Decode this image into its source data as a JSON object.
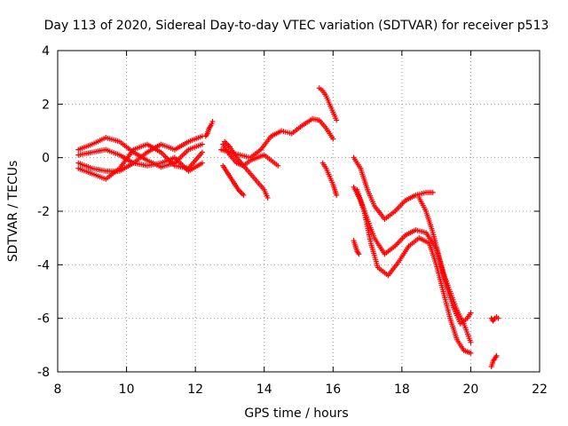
{
  "chart_data": {
    "type": "scatter",
    "title": "Day 113 of 2020, Sidereal Day-to-day VTEC variation (SDTVAR) for receiver p513",
    "xlabel": "GPS time / hours",
    "ylabel": "SDTVAR / TECUs",
    "xlim": [
      8,
      22
    ],
    "ylim": [
      -8,
      4
    ],
    "xticks": [
      "8",
      "10",
      "12",
      "14",
      "16",
      "18",
      "20",
      "22"
    ],
    "yticks": [
      "-8",
      "-6",
      "-4",
      "-2",
      "0",
      "2",
      "4"
    ],
    "grid": true,
    "marker": "+",
    "color": "#ff0000",
    "series": [
      {
        "name": "s1",
        "x": [
          8.6,
          9.0,
          9.4,
          9.8,
          10.2,
          10.6,
          11.0,
          11.4,
          11.8,
          12.2
        ],
        "y": [
          0.3,
          0.5,
          0.75,
          0.6,
          0.2,
          -0.1,
          -0.35,
          -0.2,
          0.3,
          0.5
        ]
      },
      {
        "name": "s2",
        "x": [
          8.6,
          9.0,
          9.4,
          9.8,
          10.2,
          10.6,
          11.0,
          11.4,
          11.8,
          12.2
        ],
        "y": [
          -0.4,
          -0.6,
          -0.8,
          -0.4,
          0.3,
          0.5,
          0.2,
          -0.3,
          -0.4,
          0.2
        ]
      },
      {
        "name": "s3",
        "x": [
          8.6,
          9.0,
          9.4,
          9.8,
          10.2,
          10.6,
          11.0,
          11.4,
          11.8,
          12.2
        ],
        "y": [
          0.1,
          0.2,
          0.3,
          0.1,
          -0.2,
          0.2,
          0.5,
          0.3,
          0.6,
          0.8
        ]
      },
      {
        "name": "s4",
        "x": [
          8.6,
          9.0,
          9.4,
          9.8,
          10.2,
          10.6,
          11.0,
          11.4,
          11.8,
          12.2
        ],
        "y": [
          -0.2,
          -0.4,
          -0.5,
          -0.5,
          -0.2,
          -0.3,
          -0.2,
          0.0,
          -0.5,
          -0.2
        ]
      },
      {
        "name": "s5",
        "x": [
          12.3,
          12.35,
          12.4,
          12.45,
          12.5
        ],
        "y": [
          0.8,
          0.9,
          1.1,
          1.2,
          1.35
        ]
      },
      {
        "name": "s6",
        "x": [
          12.75,
          13.0,
          13.3,
          13.6,
          13.9,
          14.2,
          14.5,
          14.8,
          15.1,
          15.4,
          15.6,
          15.8,
          16.0
        ],
        "y": [
          0.3,
          0.2,
          0.1,
          0.0,
          0.3,
          0.8,
          1.0,
          0.9,
          1.2,
          1.45,
          1.4,
          1.1,
          0.7
        ]
      },
      {
        "name": "s7",
        "x": [
          12.8,
          13.0,
          13.2,
          13.4,
          13.6,
          13.8,
          14.0,
          14.2,
          14.4
        ],
        "y": [
          0.5,
          0.1,
          -0.2,
          -0.3,
          -0.1,
          0.0,
          0.1,
          -0.1,
          -0.3
        ]
      },
      {
        "name": "s8",
        "x": [
          12.85,
          13.0,
          13.2,
          13.4,
          13.6,
          13.8,
          14.0,
          14.1
        ],
        "y": [
          0.6,
          0.4,
          0.0,
          -0.3,
          -0.6,
          -0.9,
          -1.2,
          -1.5
        ]
      },
      {
        "name": "s9",
        "x": [
          12.8,
          12.95,
          13.1,
          13.25,
          13.4
        ],
        "y": [
          -0.3,
          -0.6,
          -0.9,
          -1.2,
          -1.4
        ]
      },
      {
        "name": "s10",
        "x": [
          15.6,
          15.7,
          15.8,
          15.9,
          16.0,
          16.1
        ],
        "y": [
          2.6,
          2.5,
          2.3,
          2.0,
          1.7,
          1.4
        ]
      },
      {
        "name": "s11",
        "x": [
          15.7,
          15.8,
          15.9,
          16.0,
          16.1
        ],
        "y": [
          -0.2,
          -0.4,
          -0.7,
          -1.0,
          -1.4
        ]
      },
      {
        "name": "s12",
        "x": [
          16.6,
          16.8,
          17.0,
          17.2,
          17.5,
          17.8,
          18.1,
          18.4,
          18.7,
          18.9
        ],
        "y": [
          0.0,
          -0.4,
          -1.2,
          -1.8,
          -2.3,
          -2.0,
          -1.6,
          -1.4,
          -1.3,
          -1.3
        ]
      },
      {
        "name": "s13",
        "x": [
          16.6,
          16.8,
          17.0,
          17.2,
          17.5,
          17.8,
          18.1,
          18.4,
          18.7,
          19.0,
          19.2,
          19.4,
          19.6,
          19.8,
          20.0
        ],
        "y": [
          -1.1,
          -1.6,
          -2.3,
          -3.0,
          -3.6,
          -3.3,
          -2.9,
          -2.7,
          -2.8,
          -3.4,
          -4.3,
          -5.0,
          -5.7,
          -6.2,
          -6.9
        ]
      },
      {
        "name": "s14",
        "x": [
          16.7,
          16.9,
          17.1,
          17.3,
          17.6,
          17.9,
          18.2,
          18.5,
          18.8,
          19.0,
          19.2,
          19.4,
          19.6,
          19.8,
          20.0
        ],
        "y": [
          -1.2,
          -2.0,
          -3.2,
          -4.1,
          -4.4,
          -3.9,
          -3.3,
          -3.0,
          -3.2,
          -4.0,
          -5.0,
          -6.0,
          -6.8,
          -7.2,
          -7.3
        ]
      },
      {
        "name": "s15",
        "x": [
          18.5,
          18.7,
          18.9,
          19.1,
          19.3,
          19.5,
          19.7,
          19.9,
          20.0
        ],
        "y": [
          -1.5,
          -2.0,
          -2.8,
          -3.8,
          -4.8,
          -5.6,
          -6.2,
          -6.0,
          -5.8
        ]
      },
      {
        "name": "s16",
        "x": [
          16.6,
          16.65,
          16.7,
          16.75
        ],
        "y": [
          -3.1,
          -3.3,
          -3.5,
          -3.6
        ]
      },
      {
        "name": "s17",
        "x": [
          20.6,
          20.65,
          20.7,
          20.75,
          20.8
        ],
        "y": [
          -6.0,
          -6.1,
          -6.0,
          -5.95,
          -6.0
        ]
      },
      {
        "name": "s18",
        "x": [
          20.6,
          20.65,
          20.7,
          20.75
        ],
        "y": [
          -7.8,
          -7.6,
          -7.5,
          -7.4
        ]
      }
    ]
  }
}
